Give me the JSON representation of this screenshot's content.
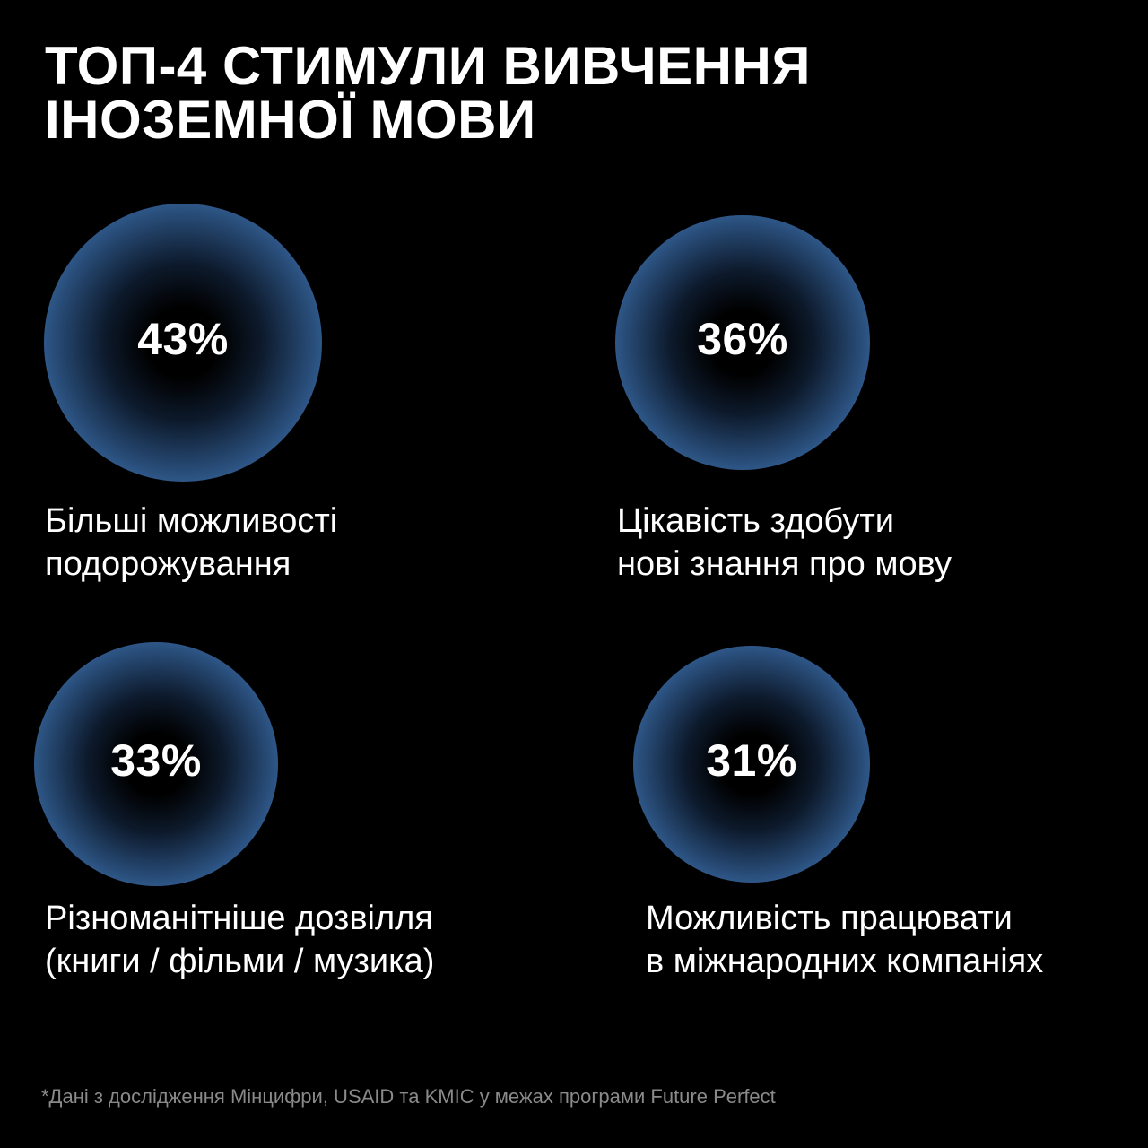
{
  "title_lines": [
    "ТОП-4 СТИМУЛИ ВИВЧЕННЯ",
    "ІНОЗЕМНОЇ МОВИ"
  ],
  "colors": {
    "background": "#000000",
    "bubble_edge": "#78b4ff",
    "bubble_center": "#000000",
    "text": "#ffffff",
    "footnote": "#8a8a8a"
  },
  "chart_data": {
    "type": "bubble",
    "unit": "%",
    "items": [
      {
        "value": 43,
        "label_text": "43%",
        "caption_lines": [
          "Більші можливості",
          "подорожування"
        ]
      },
      {
        "value": 36,
        "label_text": "36%",
        "caption_lines": [
          "Цікавість здобути",
          "нові знання про мову"
        ]
      },
      {
        "value": 33,
        "label_text": "33%",
        "caption_lines": [
          "Різноманітніше дозвілля",
          "(книги / фільми / музика)"
        ]
      },
      {
        "value": 31,
        "label_text": "31%",
        "caption_lines": [
          "Можливість працювати",
          "в міжнародних компаніях"
        ]
      }
    ]
  },
  "footnote": "*Дані з дослідження Мінцифри, USAID та KMIC у межах програми Future Perfect"
}
